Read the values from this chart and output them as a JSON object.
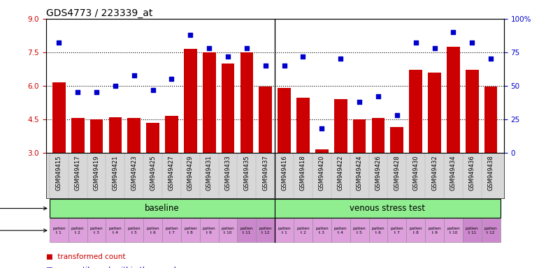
{
  "title": "GDS4773 / 223339_at",
  "x_labels": [
    "GSM949415",
    "GSM949417",
    "GSM949419",
    "GSM949421",
    "GSM949423",
    "GSM949425",
    "GSM949427",
    "GSM949429",
    "GSM949431",
    "GSM949433",
    "GSM949435",
    "GSM949437",
    "GSM949416",
    "GSM949418",
    "GSM949420",
    "GSM949422",
    "GSM949424",
    "GSM949426",
    "GSM949428",
    "GSM949430",
    "GSM949432",
    "GSM949434",
    "GSM949436",
    "GSM949438"
  ],
  "bar_values": [
    6.15,
    4.55,
    4.5,
    4.6,
    4.55,
    4.35,
    4.65,
    7.65,
    7.5,
    7.0,
    7.5,
    5.95,
    5.9,
    5.45,
    3.15,
    5.4,
    4.5,
    4.55,
    4.15,
    6.7,
    6.6,
    7.75,
    6.7,
    5.95
  ],
  "scatter_values": [
    82,
    45,
    45,
    50,
    58,
    47,
    55,
    88,
    78,
    72,
    78,
    65,
    65,
    72,
    18,
    70,
    38,
    42,
    28,
    82,
    78,
    90,
    82,
    70
  ],
  "ylim_left": [
    3,
    9
  ],
  "ylim_right": [
    0,
    100
  ],
  "yticks_left": [
    3,
    4.5,
    6,
    7.5,
    9
  ],
  "yticks_right": [
    0,
    25,
    50,
    75,
    100
  ],
  "ytick_labels_right": [
    "0",
    "25",
    "50",
    "75",
    "100%"
  ],
  "hlines": [
    4.5,
    6.0,
    7.5
  ],
  "bar_color": "#cc0000",
  "scatter_color": "#0000cc",
  "bar_width": 0.7,
  "baseline_separator": 11.5,
  "xlabel_fontsize": 6,
  "ylabel_left_color": "#cc0000",
  "ylabel_right_color": "#0000cc",
  "title_fontsize": 10,
  "protocol_color": "#90ee90",
  "individual_color_normal": "#dda0dd",
  "individual_color_dark": "#cc88cc"
}
